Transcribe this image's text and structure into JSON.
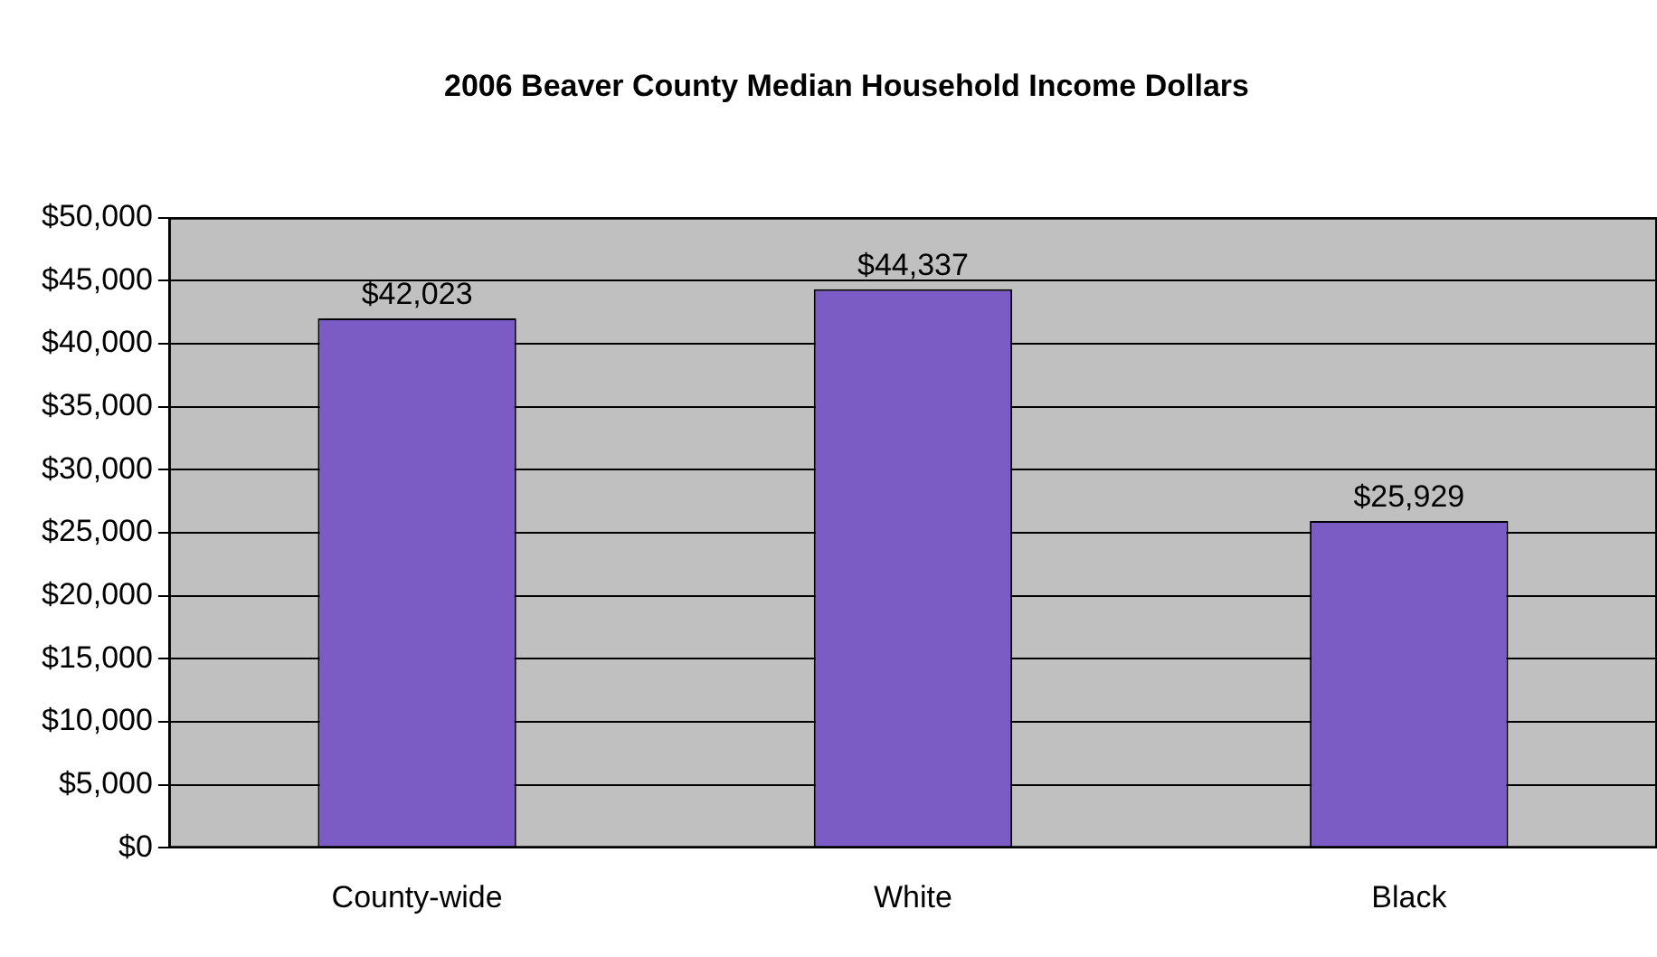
{
  "chart_data": {
    "type": "bar",
    "title": "2006 Beaver County Median Household Income Dollars",
    "categories": [
      "County-wide",
      "White",
      "Black"
    ],
    "values": [
      42023,
      44337,
      25929
    ],
    "value_labels": [
      "$42,023",
      "$44,337",
      "$25,929"
    ],
    "color": "#7b5cc4",
    "ylim": [
      0,
      50000
    ],
    "yticks": [
      {
        "value": 0,
        "label": "$0"
      },
      {
        "value": 5000,
        "label": "$5,000"
      },
      {
        "value": 10000,
        "label": "$10,000"
      },
      {
        "value": 15000,
        "label": "$15,000"
      },
      {
        "value": 20000,
        "label": "$20,000"
      },
      {
        "value": 25000,
        "label": "$25,000"
      },
      {
        "value": 30000,
        "label": "$30,000"
      },
      {
        "value": 35000,
        "label": "$35,000"
      },
      {
        "value": 40000,
        "label": "$40,000"
      },
      {
        "value": 45000,
        "label": "$45,000"
      },
      {
        "value": 50000,
        "label": "$50,000"
      }
    ],
    "grid": "y",
    "legend": false
  }
}
